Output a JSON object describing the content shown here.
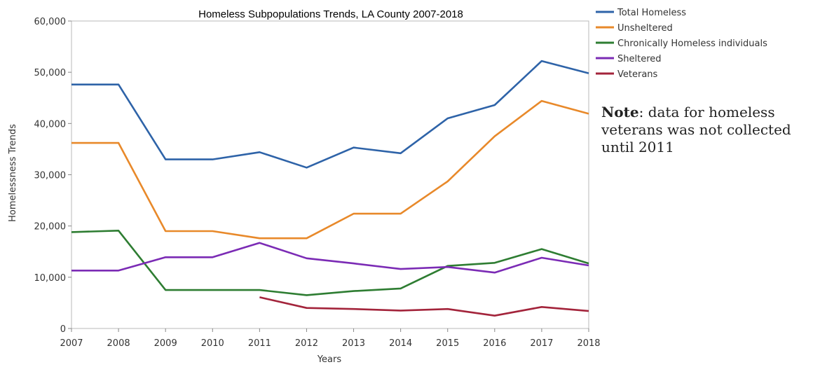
{
  "chart_data": {
    "type": "line",
    "title": "Homeless Subpopulations Trends, LA County 2007-2018",
    "xlabel": "Years",
    "ylabel": "Homelessness Trends",
    "x": [
      "2007",
      "2008",
      "2009",
      "2010",
      "2011",
      "2012",
      "2013",
      "2014",
      "2015",
      "2016",
      "2017",
      "2018"
    ],
    "ylim": [
      0,
      60000
    ],
    "yticks": [
      0,
      10000,
      20000,
      30000,
      40000,
      50000,
      60000
    ],
    "ytick_labels": [
      "0",
      "10,000",
      "20,000",
      "30,000",
      "40,000",
      "50,000",
      "60,000"
    ],
    "grid": false,
    "legend_position": "right",
    "series": [
      {
        "name": "Total Homeless",
        "color": "#2e63a8",
        "values": [
          47600,
          47600,
          33000,
          33000,
          34400,
          31400,
          35300,
          34200,
          41000,
          43600,
          52200,
          49800
        ]
      },
      {
        "name": "Unsheltered",
        "color": "#e8892a",
        "values": [
          36200,
          36200,
          19000,
          19000,
          17600,
          17600,
          22400,
          22400,
          28700,
          37500,
          44400,
          41900
        ]
      },
      {
        "name": "Chronically Homeless individuals",
        "color": "#2e7d32",
        "values": [
          18800,
          19100,
          7500,
          7500,
          7500,
          6500,
          7300,
          7800,
          12200,
          12800,
          15500,
          12700
        ]
      },
      {
        "name": "Sheltered",
        "color": "#7b2bb5",
        "values": [
          11300,
          11300,
          13900,
          13900,
          16700,
          13700,
          12700,
          11600,
          12000,
          10900,
          13800,
          12300
        ]
      },
      {
        "name": "Veterans",
        "color": "#a3243b",
        "values": [
          null,
          null,
          null,
          null,
          6100,
          4000,
          3800,
          3500,
          3800,
          2500,
          4200,
          3400
        ]
      }
    ]
  },
  "note": {
    "label": "Note",
    "text": ": data for homeless veterans was not collected until 2011"
  }
}
